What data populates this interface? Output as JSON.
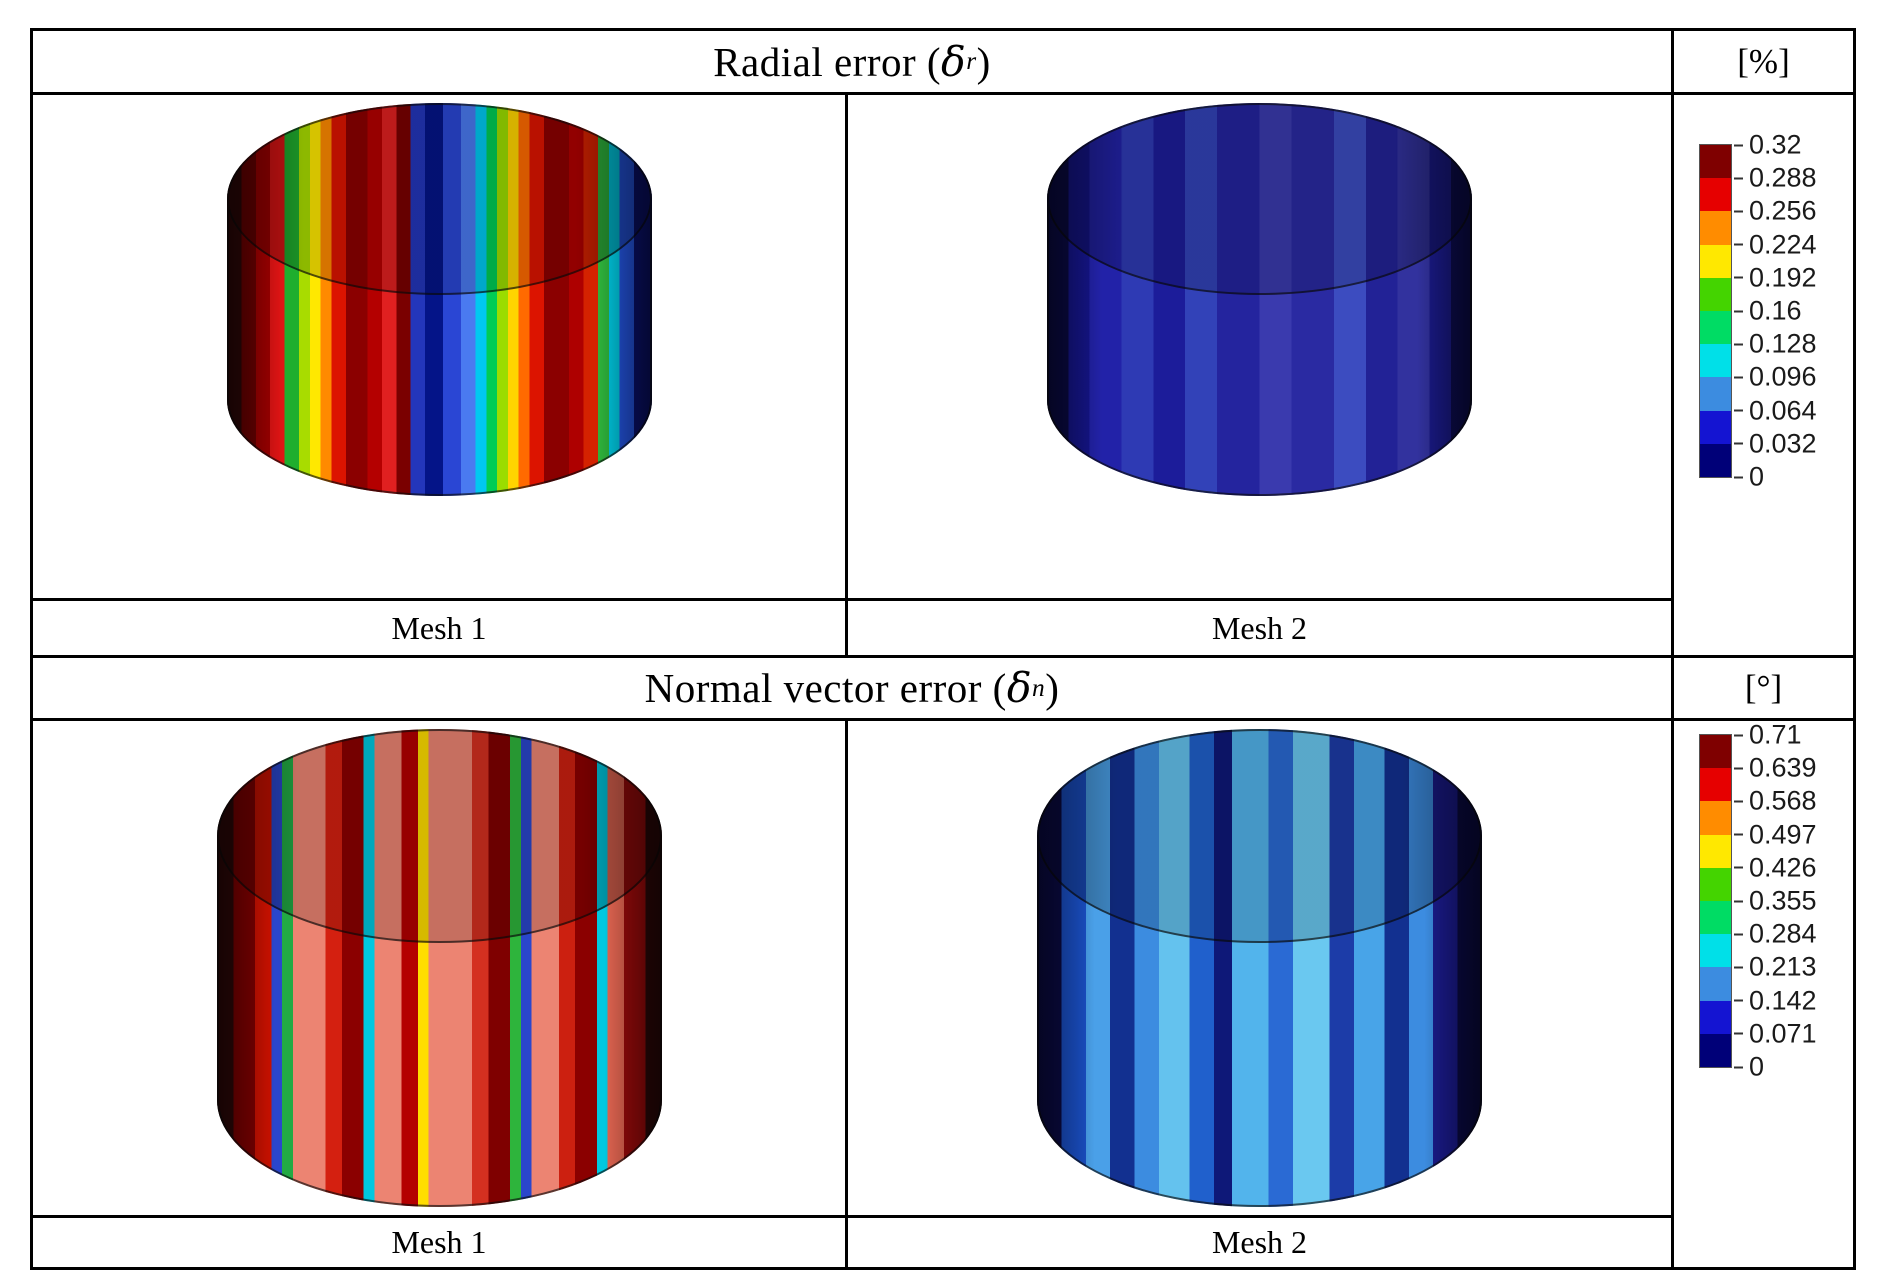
{
  "figure": {
    "background": "#ffffff",
    "border_color": "#000000"
  },
  "sections": [
    {
      "title_prefix": "Radial error (",
      "title_symbol": "δ",
      "title_sub": "r",
      "title_suffix": ")",
      "unit": "[%]",
      "mesh1_label": "Mesh 1",
      "mesh2_label": "Mesh 2",
      "colorbar": {
        "ticks": [
          "0.32",
          "0.288",
          "0.256",
          "0.224",
          "0.192",
          "0.16",
          "0.128",
          "0.096",
          "0.064",
          "0.032",
          "0"
        ],
        "colors": [
          "#7f0000",
          "#e60000",
          "#ff8c00",
          "#ffe800",
          "#44d400",
          "#00dc64",
          "#00e0e8",
          "#3c8ce0",
          "#1414d2",
          "#000078"
        ]
      },
      "mesh1_stripes": [
        {
          "c": "#2e0808",
          "w": 2
        },
        {
          "c": "#6e0000",
          "w": 2
        },
        {
          "c": "#a30000",
          "w": 2
        },
        {
          "c": "#e01414",
          "w": 2
        },
        {
          "c": "#1fae2e",
          "w": 2
        },
        {
          "c": "#a8dc00",
          "w": 1.5
        },
        {
          "c": "#ffe800",
          "w": 1.5
        },
        {
          "c": "#ff8a00",
          "w": 1.5
        },
        {
          "c": "#dc1400",
          "w": 2
        },
        {
          "c": "#8b0000",
          "w": 3
        },
        {
          "c": "#b40000",
          "w": 2
        },
        {
          "c": "#e02020",
          "w": 2
        },
        {
          "c": "#7a0000",
          "w": 2
        },
        {
          "c": "#2336bb",
          "w": 2
        },
        {
          "c": "#041488",
          "w": 2.5
        },
        {
          "c": "#2a46d4",
          "w": 2.5
        },
        {
          "c": "#4a7af0",
          "w": 2
        },
        {
          "c": "#00c8f0",
          "w": 1.5
        },
        {
          "c": "#00cc55",
          "w": 1.5
        },
        {
          "c": "#9bdc00",
          "w": 1.5
        },
        {
          "c": "#ffd400",
          "w": 1.5
        },
        {
          "c": "#ff6a00",
          "w": 1.5
        },
        {
          "c": "#dc1400",
          "w": 2
        },
        {
          "c": "#8b0000",
          "w": 3.5
        },
        {
          "c": "#ae0000",
          "w": 2
        },
        {
          "c": "#d42200",
          "w": 2
        },
        {
          "c": "#2eb43c",
          "w": 1.5
        },
        {
          "c": "#00c8e0",
          "w": 1.5
        },
        {
          "c": "#2353dd",
          "w": 2
        },
        {
          "c": "#0a1170",
          "w": 2.5
        }
      ],
      "mesh2_stripes": [
        {
          "c": "#0a0a46",
          "w": 2
        },
        {
          "c": "#15158c",
          "w": 2
        },
        {
          "c": "#2222a8",
          "w": 3
        },
        {
          "c": "#2e3ab4",
          "w": 3
        },
        {
          "c": "#1c1c9a",
          "w": 3
        },
        {
          "c": "#3242b8",
          "w": 3
        },
        {
          "c": "#24249e",
          "w": 4
        },
        {
          "c": "#3a3aae",
          "w": 3
        },
        {
          "c": "#2a2aa2",
          "w": 4
        },
        {
          "c": "#3c4cc0",
          "w": 3
        },
        {
          "c": "#222296",
          "w": 3
        },
        {
          "c": "#32329e",
          "w": 3
        },
        {
          "c": "#1a1a8a",
          "w": 2
        },
        {
          "c": "#0c0c52",
          "w": 2
        }
      ]
    },
    {
      "title_prefix": "Normal vector error (",
      "title_symbol": "δ",
      "title_sub": "n",
      "title_suffix": ")",
      "unit": "[°]",
      "mesh1_label": "Mesh 1",
      "mesh2_label": "Mesh 2",
      "colorbar": {
        "ticks": [
          "0.71",
          "0.639",
          "0.568",
          "0.497",
          "0.426",
          "0.355",
          "0.284",
          "0.213",
          "0.142",
          "0.071",
          "0"
        ],
        "colors": [
          "#7f0000",
          "#e60000",
          "#ff8c00",
          "#ffe800",
          "#44d400",
          "#00dc64",
          "#00e0e8",
          "#3c8ce0",
          "#1414d2",
          "#000078"
        ]
      },
      "mesh1_stripes": [
        {
          "c": "#2e0808",
          "w": 1.5
        },
        {
          "c": "#7f0000",
          "w": 2
        },
        {
          "c": "#cc1100",
          "w": 1.5
        },
        {
          "c": "#2a46cc",
          "w": 1
        },
        {
          "c": "#22aa44",
          "w": 1
        },
        {
          "c": "#ec8472",
          "w": 3
        },
        {
          "c": "#d42010",
          "w": 1.5
        },
        {
          "c": "#8b0000",
          "w": 2
        },
        {
          "c": "#00c8e0",
          "w": 1
        },
        {
          "c": "#ec8472",
          "w": 2.5
        },
        {
          "c": "#b40000",
          "w": 1.5
        },
        {
          "c": "#ffdd00",
          "w": 1
        },
        {
          "c": "#ec8472",
          "w": 4
        },
        {
          "c": "#d43020",
          "w": 1.5
        },
        {
          "c": "#7f0000",
          "w": 2
        },
        {
          "c": "#2eb43c",
          "w": 1
        },
        {
          "c": "#2a46cc",
          "w": 1
        },
        {
          "c": "#ec8472",
          "w": 2.5
        },
        {
          "c": "#cc2010",
          "w": 1.5
        },
        {
          "c": "#8b0000",
          "w": 2
        },
        {
          "c": "#00c8e0",
          "w": 1
        },
        {
          "c": "#e06450",
          "w": 1.5
        },
        {
          "c": "#9a0a0a",
          "w": 2
        },
        {
          "c": "#2e0808",
          "w": 1.5
        }
      ],
      "mesh2_stripes": [
        {
          "c": "#0a0a46",
          "w": 2
        },
        {
          "c": "#1a50c8",
          "w": 2
        },
        {
          "c": "#4aa0e8",
          "w": 2
        },
        {
          "c": "#123090",
          "w": 2
        },
        {
          "c": "#3c8ce0",
          "w": 2
        },
        {
          "c": "#64c2ee",
          "w": 2.5
        },
        {
          "c": "#2060cc",
          "w": 2
        },
        {
          "c": "#0e1878",
          "w": 1.5
        },
        {
          "c": "#52b4ec",
          "w": 3
        },
        {
          "c": "#2a6ad4",
          "w": 2
        },
        {
          "c": "#6ac8f0",
          "w": 3
        },
        {
          "c": "#1c3ca8",
          "w": 2
        },
        {
          "c": "#48a4e8",
          "w": 2.5
        },
        {
          "c": "#123090",
          "w": 2
        },
        {
          "c": "#3c8ce0",
          "w": 2
        },
        {
          "c": "#1a1a8c",
          "w": 2
        },
        {
          "c": "#0a0a46",
          "w": 2
        }
      ]
    }
  ],
  "chart_data": [
    {
      "type": "heatmap",
      "title": "Radial error (δr)",
      "unit": "[%]",
      "panels": [
        "Mesh 1",
        "Mesh 2"
      ],
      "colorbar_ticks": [
        0.32,
        0.288,
        0.256,
        0.224,
        0.192,
        0.16,
        0.128,
        0.096,
        0.064,
        0.032,
        0
      ],
      "colorbar_range": [
        0,
        0.32
      ],
      "colormap": "jet-like (dark red max to dark blue min)",
      "legend_position": "right",
      "notes": "Mesh 1 cylinder shows full-range rainbow vertical stripes (errors up to ~0.32%); Mesh 2 cylinder is almost entirely dark/medium blue (errors near 0-0.064%)"
    },
    {
      "type": "heatmap",
      "title": "Normal vector error (δn)",
      "unit": "[°]",
      "panels": [
        "Mesh 1",
        "Mesh 2"
      ],
      "colorbar_ticks": [
        0.71,
        0.639,
        0.568,
        0.497,
        0.426,
        0.355,
        0.284,
        0.213,
        0.142,
        0.071,
        0
      ],
      "colorbar_range": [
        0,
        0.71
      ],
      "colormap": "jet-like (dark red max to dark blue min)",
      "legend_position": "right",
      "notes": "Mesh 1 cylinder dominated by red/salmon stripes (high error ~0.5-0.71°) with narrow blue/green/cyan stripes; Mesh 2 cylinder shows blue/cyan stripes (low error ~0.07-0.28°)"
    }
  ]
}
